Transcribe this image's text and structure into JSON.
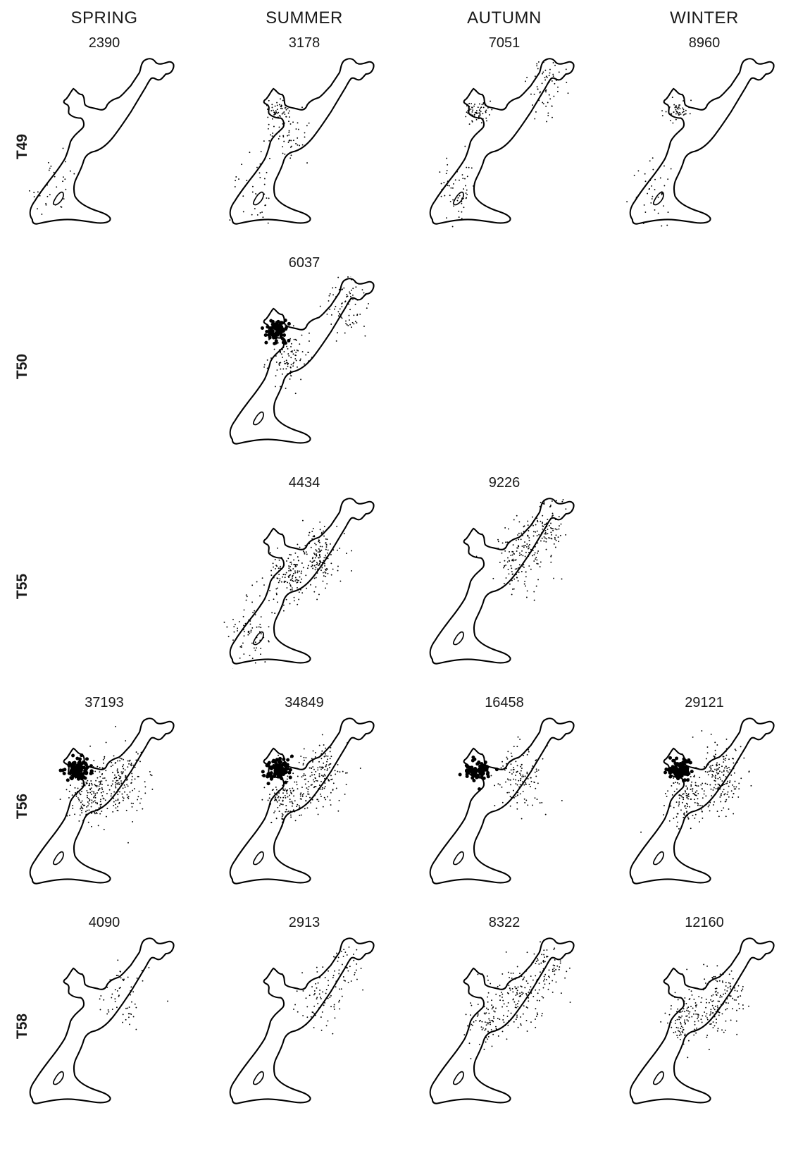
{
  "columns": [
    "SPRING",
    "SUMMER",
    "AUTUMN",
    "WINTER"
  ],
  "rows": [
    "T49",
    "T50",
    "T55",
    "T56",
    "T58"
  ],
  "panels": [
    {
      "row": 0,
      "col": 0,
      "count": "2390",
      "density": 0.15,
      "hotspots": [
        "sw"
      ]
    },
    {
      "row": 0,
      "col": 1,
      "count": "3178",
      "density": 0.22,
      "hotspots": [
        "bay",
        "sw",
        "mid"
      ]
    },
    {
      "row": 0,
      "col": 2,
      "count": "7051",
      "density": 0.45,
      "hotspots": [
        "ne",
        "bay",
        "sw"
      ]
    },
    {
      "row": 0,
      "col": 3,
      "count": "8960",
      "density": 0.25,
      "hotspots": [
        "sw",
        "bay"
      ]
    },
    {
      "row": 1,
      "col": 0,
      "count": "",
      "density": 0,
      "hotspots": []
    },
    {
      "row": 1,
      "col": 1,
      "count": "6037",
      "density": 0.6,
      "hotspots": [
        "bay",
        "mid",
        "ne"
      ]
    },
    {
      "row": 1,
      "col": 2,
      "count": "",
      "density": 0,
      "hotspots": []
    },
    {
      "row": 1,
      "col": 3,
      "count": "",
      "density": 0,
      "hotspots": []
    },
    {
      "row": 2,
      "col": 0,
      "count": "",
      "density": 0,
      "hotspots": []
    },
    {
      "row": 2,
      "col": 1,
      "count": "4434",
      "density": 0.8,
      "hotspots": [
        "east",
        "mid",
        "sw"
      ]
    },
    {
      "row": 2,
      "col": 2,
      "count": "9226",
      "density": 0.75,
      "hotspots": [
        "east",
        "ne"
      ]
    },
    {
      "row": 2,
      "col": 3,
      "count": "",
      "density": 0,
      "hotspots": []
    },
    {
      "row": 3,
      "col": 0,
      "count": "37193",
      "density": 1.0,
      "hotspots": [
        "bay",
        "mid",
        "east"
      ]
    },
    {
      "row": 3,
      "col": 1,
      "count": "34849",
      "density": 0.85,
      "hotspots": [
        "bay",
        "mid",
        "east"
      ]
    },
    {
      "row": 3,
      "col": 2,
      "count": "16458",
      "density": 0.6,
      "hotspots": [
        "bay",
        "east"
      ]
    },
    {
      "row": 3,
      "col": 3,
      "count": "29121",
      "density": 0.9,
      "hotspots": [
        "bay",
        "mid",
        "east"
      ]
    },
    {
      "row": 4,
      "col": 0,
      "count": "4090",
      "density": 0.12,
      "hotspots": [
        "east"
      ]
    },
    {
      "row": 4,
      "col": 1,
      "count": "2913",
      "density": 0.2,
      "hotspots": [
        "east",
        "ne"
      ]
    },
    {
      "row": 4,
      "col": 2,
      "count": "8322",
      "density": 0.5,
      "hotspots": [
        "east",
        "ne",
        "mid"
      ]
    },
    {
      "row": 4,
      "col": 3,
      "count": "12160",
      "density": 0.7,
      "hotspots": [
        "east",
        "mid"
      ]
    }
  ]
}
